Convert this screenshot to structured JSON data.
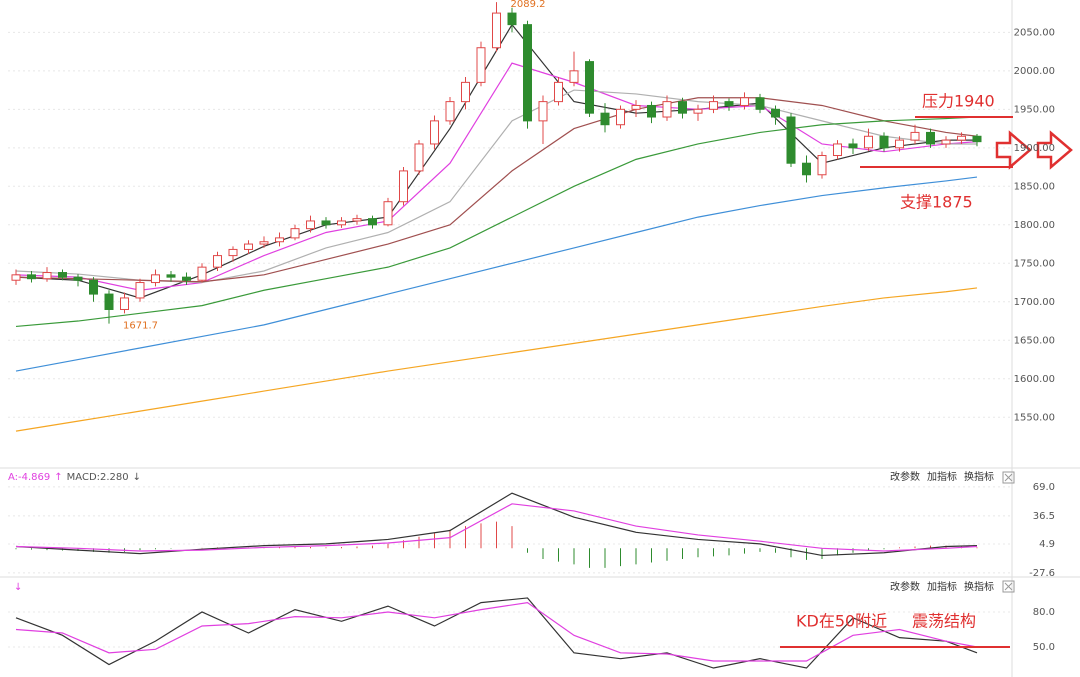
{
  "chart_data": [
    {
      "type": "candlestick",
      "up_color": "#e04848",
      "down_color": "#2e8b2e",
      "ylim": [
        1488,
        2092
      ],
      "yticks": [
        {
          "value": 1550,
          "label": "1550.00"
        },
        {
          "value": 1600,
          "label": "1600.00"
        },
        {
          "value": 1650,
          "label": "1650.00"
        },
        {
          "value": 1700,
          "label": "1700.00"
        },
        {
          "value": 1750,
          "label": "1750.00"
        },
        {
          "value": 1800,
          "label": "1800.00"
        },
        {
          "value": 1850,
          "label": "1850.00"
        },
        {
          "value": 1900,
          "label": "1900.00"
        },
        {
          "value": 1950,
          "label": "1950.00"
        },
        {
          "value": 2000,
          "label": "2000.00"
        },
        {
          "value": 2050,
          "label": "2050.00"
        }
      ],
      "grid": true,
      "candles": [
        [
          1728,
          1742,
          1722,
          1735
        ],
        [
          1735,
          1740,
          1725,
          1730
        ],
        [
          1730,
          1745,
          1726,
          1738
        ],
        [
          1738,
          1742,
          1728,
          1732
        ],
        [
          1732,
          1736,
          1720,
          1728
        ],
        [
          1728,
          1732,
          1700,
          1710
        ],
        [
          1710,
          1715,
          1671.7,
          1690
        ],
        [
          1690,
          1712,
          1685,
          1705
        ],
        [
          1705,
          1730,
          1700,
          1725
        ],
        [
          1725,
          1742,
          1720,
          1735
        ],
        [
          1735,
          1740,
          1726,
          1732
        ],
        [
          1732,
          1738,
          1722,
          1728
        ],
        [
          1728,
          1750,
          1725,
          1745
        ],
        [
          1745,
          1765,
          1740,
          1760
        ],
        [
          1760,
          1772,
          1752,
          1768
        ],
        [
          1768,
          1780,
          1762,
          1775
        ],
        [
          1775,
          1785,
          1770,
          1778
        ],
        [
          1778,
          1790,
          1772,
          1783
        ],
        [
          1783,
          1800,
          1780,
          1795
        ],
        [
          1795,
          1812,
          1790,
          1805
        ],
        [
          1805,
          1810,
          1795,
          1800
        ],
        [
          1800,
          1810,
          1796,
          1805
        ],
        [
          1805,
          1813,
          1800,
          1808
        ],
        [
          1808,
          1812,
          1795,
          1800
        ],
        [
          1800,
          1835,
          1798,
          1830
        ],
        [
          1830,
          1875,
          1825,
          1870
        ],
        [
          1870,
          1910,
          1865,
          1905
        ],
        [
          1905,
          1942,
          1898,
          1935
        ],
        [
          1935,
          1966,
          1930,
          1960
        ],
        [
          1960,
          1992,
          1950,
          1985
        ],
        [
          1985,
          2038,
          1980,
          2030
        ],
        [
          2030,
          2089.2,
          2025,
          2075
        ],
        [
          2075,
          2082,
          2050,
          2060
        ],
        [
          2060,
          2065,
          1925,
          1935
        ],
        [
          1935,
          1968,
          1905,
          1960
        ],
        [
          1960,
          1992,
          1955,
          1985
        ],
        [
          1985,
          2025,
          1980,
          2000
        ],
        [
          2012,
          2015,
          1940,
          1945
        ],
        [
          1945,
          1958,
          1920,
          1930
        ],
        [
          1930,
          1955,
          1925,
          1950
        ],
        [
          1950,
          1962,
          1940,
          1955
        ],
        [
          1955,
          1960,
          1932,
          1940
        ],
        [
          1940,
          1968,
          1935,
          1960
        ],
        [
          1960,
          1965,
          1938,
          1945
        ],
        [
          1945,
          1956,
          1935,
          1950
        ],
        [
          1950,
          1968,
          1945,
          1960
        ],
        [
          1960,
          1964,
          1948,
          1955
        ],
        [
          1955,
          1972,
          1950,
          1965
        ],
        [
          1965,
          1970,
          1945,
          1950
        ],
        [
          1950,
          1955,
          1930,
          1940
        ],
        [
          1940,
          1945,
          1875,
          1880
        ],
        [
          1880,
          1890,
          1855,
          1865
        ],
        [
          1865,
          1895,
          1860,
          1890
        ],
        [
          1890,
          1910,
          1885,
          1905
        ],
        [
          1905,
          1912,
          1892,
          1900
        ],
        [
          1900,
          1925,
          1896,
          1915
        ],
        [
          1915,
          1920,
          1895,
          1900
        ],
        [
          1900,
          1915,
          1895,
          1910
        ],
        [
          1910,
          1930,
          1905,
          1920
        ],
        [
          1920,
          1925,
          1900,
          1905
        ],
        [
          1905,
          1915,
          1900,
          1910
        ],
        [
          1910,
          1920,
          1905,
          1915
        ],
        [
          1915,
          1918,
          1902,
          1908
        ]
      ],
      "series": [
        {
          "color": "#333333",
          "x": [
            0,
            4,
            8,
            12,
            16,
            20,
            24,
            28,
            32,
            36,
            40,
            44,
            48,
            52,
            56,
            60,
            62
          ],
          "values": [
            1732,
            1728,
            1705,
            1735,
            1772,
            1800,
            1810,
            1925,
            2060,
            1960,
            1945,
            1950,
            1958,
            1880,
            1900,
            1910,
            1910
          ]
        },
        {
          "color": "#e040e0",
          "x": [
            0,
            4,
            8,
            12,
            16,
            20,
            24,
            28,
            32,
            36,
            40,
            44,
            48,
            52,
            56,
            60,
            62
          ],
          "values": [
            1735,
            1732,
            1715,
            1725,
            1760,
            1790,
            1805,
            1880,
            2010,
            1985,
            1955,
            1950,
            1955,
            1905,
            1895,
            1905,
            1908
          ]
        },
        {
          "color": "#b0b0b0",
          "x": [
            0,
            4,
            8,
            12,
            16,
            20,
            24,
            28,
            32,
            36,
            40,
            44,
            48,
            52,
            56,
            60,
            62
          ],
          "values": [
            1740,
            1736,
            1728,
            1725,
            1740,
            1770,
            1790,
            1830,
            1935,
            1975,
            1970,
            1960,
            1955,
            1935,
            1915,
            1905,
            1905
          ]
        },
        {
          "color": "#a05050",
          "x": [
            0,
            4,
            8,
            12,
            16,
            20,
            24,
            28,
            32,
            36,
            40,
            44,
            48,
            52,
            56,
            60,
            62
          ],
          "values": [
            1732,
            1730,
            1728,
            1726,
            1735,
            1755,
            1775,
            1800,
            1870,
            1925,
            1950,
            1965,
            1965,
            1955,
            1935,
            1920,
            1915
          ]
        },
        {
          "color": "#3a9a3a",
          "x": [
            0,
            4,
            8,
            12,
            16,
            20,
            24,
            28,
            32,
            36,
            40,
            44,
            48,
            52,
            56,
            60,
            62
          ],
          "values": [
            1668,
            1675,
            1685,
            1695,
            1715,
            1730,
            1745,
            1770,
            1810,
            1850,
            1885,
            1905,
            1920,
            1930,
            1935,
            1938,
            1940
          ]
        },
        {
          "color": "#3f8fd8",
          "x": [
            0,
            4,
            8,
            12,
            16,
            20,
            24,
            28,
            32,
            36,
            40,
            44,
            48,
            52,
            56,
            60,
            62
          ],
          "values": [
            1610,
            1625,
            1640,
            1655,
            1670,
            1690,
            1710,
            1730,
            1750,
            1770,
            1790,
            1810,
            1825,
            1838,
            1848,
            1857,
            1862
          ]
        },
        {
          "color": "#f5a623",
          "x": [
            0,
            4,
            8,
            12,
            16,
            20,
            24,
            28,
            32,
            36,
            40,
            44,
            48,
            52,
            56,
            60,
            62
          ],
          "values": [
            1532,
            1545,
            1558,
            1571,
            1584,
            1597,
            1610,
            1622,
            1634,
            1646,
            1658,
            1670,
            1682,
            1694,
            1705,
            1713,
            1718
          ]
        }
      ],
      "annotations": [
        {
          "label": "压力1940",
          "value": 1940
        },
        {
          "label": "支撑1875",
          "value": 1875
        }
      ]
    },
    {
      "type": "macd",
      "header": [
        {
          "text": "A:-4.869",
          "color": "#e040e0"
        },
        {
          "text": "↑",
          "color": "#e040e0"
        },
        {
          "text": "MACD:2.280",
          "color": "#555555"
        },
        {
          "text": "↓",
          "color": "#555555"
        }
      ],
      "buttons": [
        "改参数",
        "加指标",
        "换指标"
      ],
      "ylim": [
        -30,
        82.4
      ],
      "yticks": [
        {
          "value": 69,
          "label": "69.0"
        },
        {
          "value": 36.5,
          "label": "36.5"
        },
        4.9,
        -27.6
      ],
      "up_color": "#e04848",
      "down_color": "#2e8b2e",
      "histogram": [
        -1,
        -1.5,
        -2,
        -2.5,
        -3,
        -4,
        -5,
        -4,
        -2,
        -1,
        -0.5,
        0,
        0.5,
        1,
        1.5,
        1,
        1,
        1.5,
        2,
        1.5,
        1,
        1.5,
        2,
        3,
        5,
        9,
        13,
        17,
        21,
        25,
        28,
        30,
        25,
        -5,
        -12,
        -15,
        -18,
        -22,
        -22,
        -20,
        -18,
        -16,
        -14,
        -12,
        -10,
        -9,
        -8,
        -6,
        -4,
        -5,
        -10,
        -13,
        -12,
        -8,
        -5,
        -3,
        -1,
        1,
        2,
        3,
        3,
        2,
        1
      ],
      "series": [
        {
          "color": "#333333",
          "x": [
            0,
            4,
            8,
            12,
            16,
            20,
            24,
            28,
            32,
            36,
            40,
            44,
            48,
            52,
            56,
            60,
            62
          ],
          "values": [
            2,
            -2,
            -6,
            -1,
            3,
            5,
            10,
            20,
            62,
            35,
            18,
            10,
            5,
            -8,
            -5,
            2,
            3
          ]
        },
        {
          "color": "#e040e0",
          "x": [
            0,
            4,
            8,
            12,
            16,
            20,
            24,
            28,
            32,
            36,
            40,
            44,
            48,
            52,
            56,
            60,
            62
          ],
          "values": [
            2,
            0,
            -3,
            -2,
            1,
            3,
            6,
            12,
            50,
            42,
            25,
            15,
            8,
            0,
            -3,
            0,
            2
          ]
        }
      ]
    },
    {
      "type": "kd",
      "buttons": [
        "改参数",
        "加指标",
        "换指标"
      ],
      "ylim": [
        24.3,
        103.1
      ],
      "yticks": [
        {
          "value": 80,
          "label": "80.0"
        },
        {
          "value": 50,
          "label": "50.0"
        }
      ],
      "series": [
        {
          "color": "#333333",
          "x": [
            0,
            3,
            6,
            9,
            12,
            15,
            18,
            21,
            24,
            27,
            30,
            33,
            36,
            39,
            42,
            45,
            48,
            51,
            54,
            57,
            60,
            62
          ],
          "values": [
            75,
            60,
            35,
            55,
            80,
            62,
            82,
            72,
            85,
            68,
            88,
            92,
            45,
            40,
            45,
            32,
            40,
            32,
            75,
            58,
            55,
            45
          ]
        },
        {
          "color": "#e040e0",
          "x": [
            0,
            3,
            6,
            9,
            12,
            15,
            18,
            21,
            24,
            27,
            30,
            33,
            36,
            39,
            42,
            45,
            48,
            51,
            54,
            57,
            60,
            62
          ],
          "values": [
            65,
            62,
            45,
            48,
            68,
            70,
            76,
            75,
            80,
            75,
            82,
            88,
            60,
            45,
            44,
            38,
            38,
            38,
            60,
            65,
            55,
            50
          ]
        }
      ],
      "annotations": [
        {
          "label": "KD在50附近",
          "value": 50
        },
        {
          "label": "震荡结构"
        }
      ]
    }
  ]
}
